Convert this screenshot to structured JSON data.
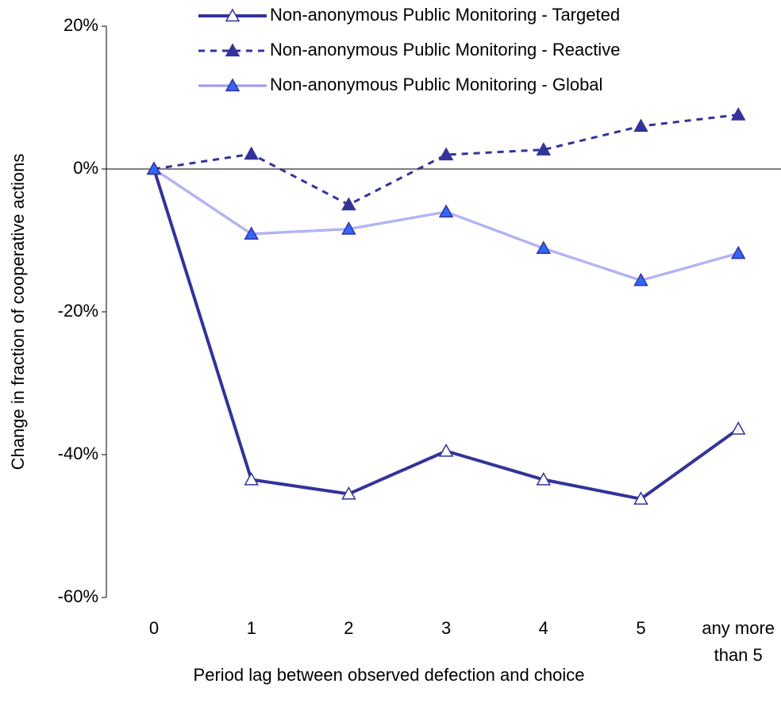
{
  "chart_data": {
    "type": "line",
    "x_label": "Period lag between observed defection and choice",
    "y_label": "Change in fraction of cooperative actions",
    "categories": [
      "0",
      "1",
      "2",
      "3",
      "4",
      "5",
      "any more than 5"
    ],
    "series": [
      {
        "name": "Non-anonymous Public Monitoring - Targeted",
        "color": "#333399",
        "marker_fill": "#ffffff",
        "line_style": "solid",
        "line_width": 4,
        "values": [
          0,
          -43.5,
          -45.5,
          -39.5,
          -43.5,
          -46.2,
          -36.4
        ]
      },
      {
        "name": "Non-anonymous Public Monitoring - Reactive",
        "color": "#333399",
        "marker_fill": "#333399",
        "line_style": "dashed",
        "line_width": 3,
        "values": [
          0,
          2.1,
          -5.0,
          2.0,
          2.7,
          6.0,
          7.6
        ]
      },
      {
        "name": "Non-anonymous Public Monitoring - Global",
        "color": "#9999ee",
        "marker_fill": "#3366ff",
        "line_style": "solid",
        "line_width": 3,
        "values": [
          0,
          -9.1,
          -8.4,
          -6.0,
          -11.1,
          -15.6,
          -11.8
        ]
      }
    ],
    "ylim": [
      -60,
      20
    ],
    "yticks": [
      {
        "value": -60,
        "label": "-60%"
      },
      {
        "value": -40,
        "label": "-40%"
      },
      {
        "value": -20,
        "label": "-20%"
      },
      {
        "value": 0,
        "label": "0%"
      },
      {
        "value": 20,
        "label": "20%"
      }
    ],
    "legend": "top"
  }
}
